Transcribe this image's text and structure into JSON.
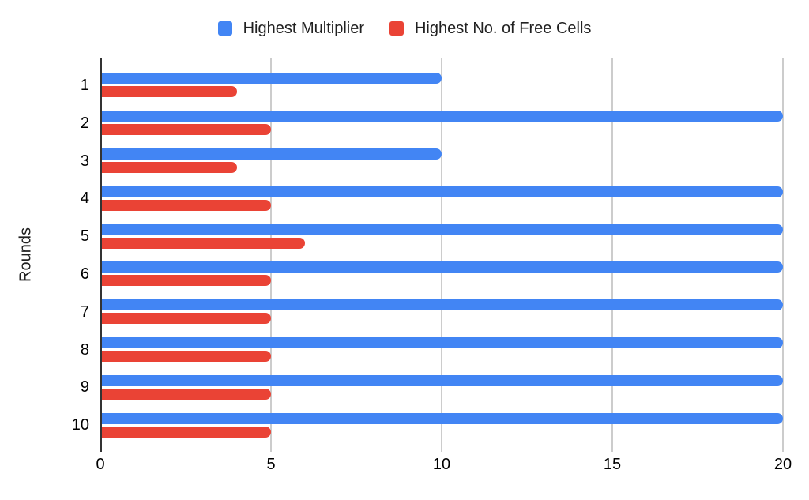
{
  "chart_data": {
    "type": "bar",
    "orientation": "horizontal",
    "categories": [
      "1",
      "2",
      "3",
      "4",
      "5",
      "6",
      "7",
      "8",
      "9",
      "10"
    ],
    "series": [
      {
        "name": "Highest Multiplier",
        "color": "#4285F4",
        "values": [
          10,
          20,
          10,
          20,
          20,
          20,
          20,
          20,
          20,
          20
        ]
      },
      {
        "name": "Highest No. of Free Cells",
        "color": "#EA4335",
        "values": [
          4,
          5,
          4,
          5,
          6,
          5,
          5,
          5,
          5,
          5
        ]
      }
    ],
    "xlabel": "",
    "ylabel": "Rounds",
    "xlim": [
      0,
      20
    ],
    "x_ticks": [
      0,
      5,
      10,
      15,
      20
    ],
    "grid": true,
    "legend_position": "top"
  },
  "style": {
    "background": "#ffffff",
    "grid_color": "#cccccc",
    "axis_color": "#333333",
    "tick_text_color": "#000000",
    "legend_text_color": "#212121"
  }
}
